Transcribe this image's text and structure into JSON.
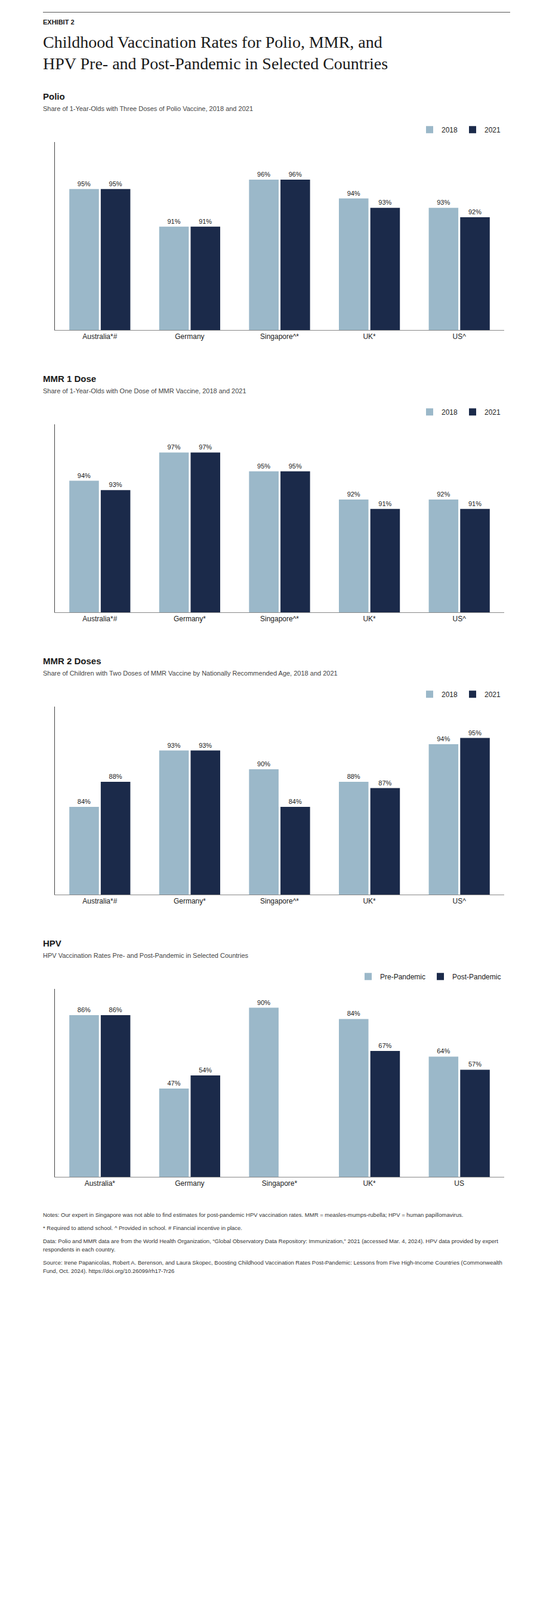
{
  "exhibit_label": "EXHIBIT 2",
  "title_lines": [
    "Childhood Vaccination Rates for Polio, MMR, and",
    "HPV Pre- and Post-Pandemic in Selected Countries"
  ],
  "notes": [
    "Notes: Our expert in Singapore was not able to find estimates for post-pandemic HPV vaccination rates. MMR = measles-mumps-rubella; HPV = human papillomavirus.",
    "* Required to attend school.   ^ Provided in school.   # Financial incentive in place.",
    "Data: Polio and MMR data are from the World Health Organization, “Global Observatory Data Repository: Immunization,” 2021 (accessed Mar. 4, 2024). HPV data provided by expert respondents in each country.",
    "Source: Irene Papanicolas, Robert A. Berenson, and Laura Skopec, Boosting Childhood Vaccination Rates Post-Pandemic: Lessons from Five High-Income Countries (Commonwealth Fund, Oct. 2024). https://doi.org/10.26099/rh17-7r26"
  ],
  "chart_data": [
    {
      "type": "bar",
      "title": "Polio",
      "subtitle": "Share of 1-Year-Olds with Three Doses of Polio Vaccine, 2018 and 2021",
      "categories": [
        "Australia*#",
        "Germany",
        "Singapore^*",
        "UK*",
        "US^"
      ],
      "series": [
        {
          "name": "2018",
          "color": "#9bb8c9",
          "values": [
            95,
            91,
            96,
            94,
            93
          ],
          "value_labels": [
            "95%",
            "91%",
            "96%",
            "94%",
            "93%"
          ]
        },
        {
          "name": "2021",
          "color": "#1b2a4a",
          "values": [
            95,
            91,
            96,
            93,
            92
          ],
          "value_labels": [
            "95%",
            "91%",
            "96%",
            "93%",
            "92%"
          ]
        }
      ],
      "ylim": [
        80,
        100
      ],
      "data_labels": true,
      "tick_labels": "x",
      "grid": false,
      "legend": "upper right"
    },
    {
      "type": "bar",
      "title": "MMR 1 Dose",
      "subtitle": "Share of 1-Year-Olds with One Dose of MMR Vaccine, 2018 and 2021",
      "categories": [
        "Australia*#",
        "Germany*",
        "Singapore^*",
        "UK*",
        "US^"
      ],
      "series": [
        {
          "name": "2018",
          "color": "#9bb8c9",
          "values": [
            94,
            97,
            95,
            92,
            92
          ],
          "value_labels": [
            "94%",
            "97%",
            "95%",
            "92%",
            "92%"
          ]
        },
        {
          "name": "2021",
          "color": "#1b2a4a",
          "values": [
            93,
            97,
            95,
            91,
            91
          ],
          "value_labels": [
            "93%",
            "97%",
            "95%",
            "91%",
            "91%"
          ]
        }
      ],
      "ylim": [
        80,
        100
      ],
      "data_labels": true,
      "tick_labels": "x",
      "grid": false,
      "legend": "upper right"
    },
    {
      "type": "bar",
      "title": "MMR 2 Doses",
      "subtitle": "Share of Children with Two Doses of MMR Vaccine by Nationally Recommended Age, 2018 and 2021",
      "categories": [
        "Australia*#",
        "Germany*",
        "Singapore^*",
        "UK*",
        "US^"
      ],
      "series": [
        {
          "name": "2018",
          "color": "#9bb8c9",
          "values": [
            84,
            93,
            90,
            88,
            94
          ],
          "value_labels": [
            "84%",
            "93%",
            "90%",
            "88%",
            "94%"
          ]
        },
        {
          "name": "2021",
          "color": "#1b2a4a",
          "values": [
            88,
            93,
            84,
            87,
            95
          ],
          "value_labels": [
            "88%",
            "93%",
            "84%",
            "87%",
            "95%"
          ]
        }
      ],
      "ylim": [
        70,
        100
      ],
      "data_labels": true,
      "tick_labels": "x",
      "grid": false,
      "legend": "upper right"
    },
    {
      "type": "bar",
      "title": "HPV",
      "subtitle": "HPV Vaccination Rates Pre- and Post-Pandemic in Selected Countries",
      "categories": [
        "Australia*",
        "Germany",
        "Singapore*",
        "UK*",
        "US"
      ],
      "series": [
        {
          "name": "Pre-Pandemic",
          "color": "#9bb8c9",
          "values": [
            86,
            47,
            90,
            84,
            64
          ],
          "value_labels": [
            "86%",
            "47%",
            "90%",
            "84%",
            "64%"
          ]
        },
        {
          "name": "Post-Pandemic",
          "color": "#1b2a4a",
          "values": [
            86,
            54,
            null,
            67,
            57
          ],
          "value_labels": [
            "86%",
            "54%",
            null,
            "67%",
            "57%"
          ]
        }
      ],
      "ylim": [
        0,
        100
      ],
      "data_labels": true,
      "tick_labels": "x",
      "grid": false,
      "legend": "upper right"
    }
  ]
}
